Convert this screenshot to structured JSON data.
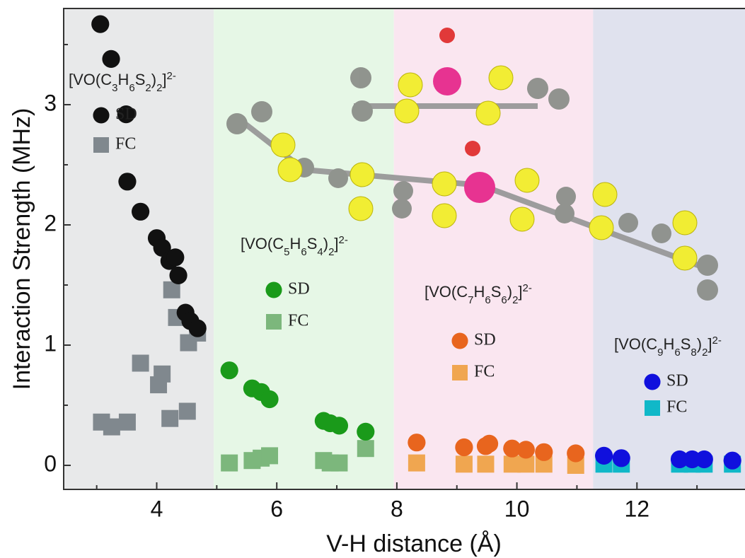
{
  "chart_data": {
    "type": "scatter",
    "x_label": "V-H distance (Å)",
    "y_label": "Interaction Strength (MHz)",
    "xlim": [
      2.45,
      13.8
    ],
    "ylim": [
      -0.2,
      3.8
    ],
    "xticks": [
      4,
      6,
      8,
      10,
      12
    ],
    "yticks": [
      0,
      1,
      2,
      3
    ],
    "xminor": [
      3,
      5,
      7,
      9,
      11,
      13
    ],
    "yminor": [
      0.5,
      1.5,
      2.5,
      3.5
    ],
    "groups": [
      {
        "label": "[VO(C3H6S2)2]2-",
        "band_color": "#e8e9ea",
        "band_xlim": [
          2.45,
          4.95
        ],
        "series": [
          {
            "name": "SD",
            "marker": "circle",
            "color": "#111111",
            "x": [
              3.06,
              3.24,
              3.49,
              3.51,
              3.73,
              4.0,
              4.09,
              4.21,
              4.31,
              4.36,
              4.48,
              4.56,
              4.68
            ],
            "values": [
              3.67,
              3.38,
              2.92,
              2.36,
              2.11,
              1.89,
              1.81,
              1.7,
              1.73,
              1.58,
              1.27,
              1.2,
              1.14
            ]
          },
          {
            "name": "FC",
            "marker": "square",
            "color": "#80888e",
            "x": [
              3.08,
              3.25,
              3.51,
              3.73,
              4.03,
              4.09,
              4.25,
              4.33,
              4.22,
              4.51,
              4.53,
              4.68
            ],
            "values": [
              0.36,
              0.32,
              0.36,
              0.85,
              0.67,
              0.76,
              1.46,
              1.23,
              0.39,
              0.45,
              1.02,
              1.1
            ]
          }
        ]
      },
      {
        "label": "[VO(C5H6S4)2]2-",
        "band_color": "#e6f7e6",
        "band_xlim": [
          4.95,
          7.95
        ],
        "series": [
          {
            "name": "SD",
            "marker": "circle",
            "color": "#1a9a1a",
            "x": [
              5.21,
              5.59,
              5.74,
              5.88,
              6.78,
              6.89,
              7.04,
              7.48
            ],
            "values": [
              0.79,
              0.64,
              0.61,
              0.55,
              0.37,
              0.35,
              0.33,
              0.28
            ]
          },
          {
            "name": "FC",
            "marker": "square",
            "color": "#7cb77c",
            "x": [
              5.21,
              5.59,
              5.74,
              5.88,
              6.78,
              6.89,
              7.04,
              7.48
            ],
            "values": [
              0.02,
              0.04,
              0.06,
              0.08,
              0.04,
              0.02,
              0.02,
              0.14
            ]
          }
        ]
      },
      {
        "label": "[VO(C7H6S6)2]2-",
        "band_color": "#fae6f0",
        "band_xlim": [
          7.95,
          11.27
        ],
        "series": [
          {
            "name": "SD",
            "marker": "circle",
            "color": "#e8651e",
            "x": [
              8.33,
              9.12,
              9.48,
              9.54,
              9.92,
              10.15,
              10.45,
              10.98
            ],
            "values": [
              0.19,
              0.15,
              0.16,
              0.18,
              0.14,
              0.13,
              0.11,
              0.1
            ]
          },
          {
            "name": "FC",
            "marker": "square",
            "color": "#f0a650",
            "x": [
              8.33,
              9.12,
              9.48,
              9.92,
              10.15,
              10.45,
              10.98
            ],
            "values": [
              0.02,
              0.01,
              0.01,
              0.01,
              0.01,
              0.01,
              0
            ]
          }
        ]
      },
      {
        "label": "[VO(C9H6S8)2]2-",
        "band_color": "#e0e2ee",
        "band_xlim": [
          11.27,
          13.8
        ],
        "series": [
          {
            "name": "SD",
            "marker": "circle",
            "color": "#1010dd",
            "x": [
              11.45,
              11.74,
              12.71,
              12.92,
              13.12,
              13.59
            ],
            "values": [
              0.08,
              0.06,
              0.05,
              0.05,
              0.05,
              0.04
            ]
          },
          {
            "name": "FC",
            "marker": "square",
            "color": "#10b8c8",
            "x": [
              11.45,
              11.74,
              12.71,
              12.92,
              13.12,
              13.59
            ],
            "values": [
              0.01,
              0.01,
              0.01,
              0.01,
              0.01,
              0.01
            ]
          }
        ]
      }
    ]
  }
}
